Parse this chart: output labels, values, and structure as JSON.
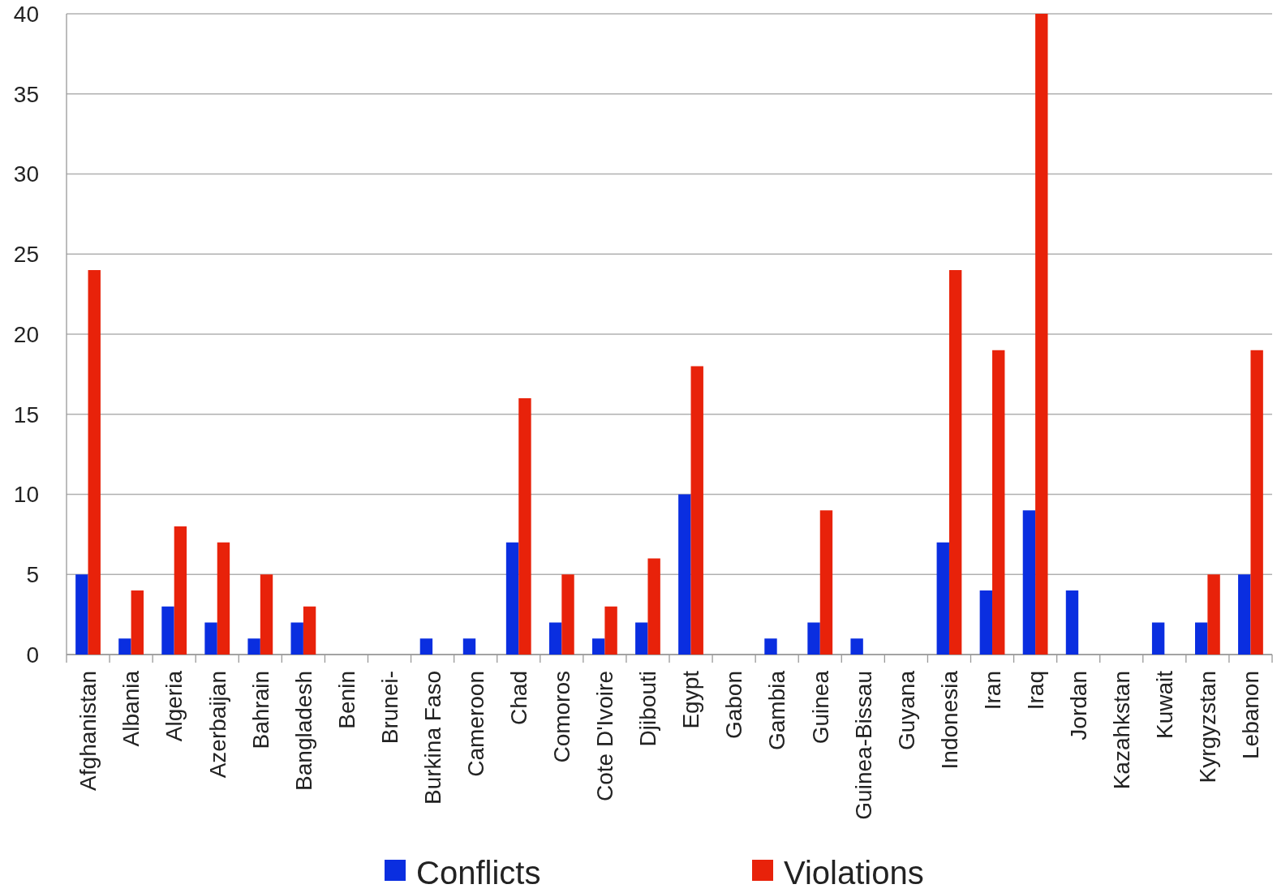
{
  "chart_data": {
    "type": "bar",
    "categories": [
      "Afghanistan",
      "Albania",
      "Algeria",
      "Azerbaijan",
      "Bahrain",
      "Bangladesh",
      "Benin",
      "Brunei-",
      "Burkina Faso",
      "Cameroon",
      "Chad",
      "Comoros",
      "Cote D'Ivoire",
      "Djibouti",
      "Egypt",
      "Gabon",
      "Gambia",
      "Guinea",
      "Guinea-Bissau",
      "Guyana",
      "Indonesia",
      "Iran",
      "Iraq",
      "Jordan",
      "Kazahkstan",
      "Kuwait",
      "Kyrgyzstan",
      "Lebanon"
    ],
    "series": [
      {
        "name": "Conflicts",
        "color": "#0a2ee0",
        "values": [
          5,
          1,
          3,
          2,
          1,
          2,
          0,
          0,
          1,
          1,
          7,
          2,
          1,
          2,
          10,
          0,
          1,
          2,
          1,
          0,
          7,
          4,
          9,
          4,
          0,
          2,
          2,
          5
        ]
      },
      {
        "name": "Violations",
        "color": "#e8220a",
        "values": [
          24,
          4,
          8,
          7,
          5,
          3,
          0,
          0,
          0,
          0,
          16,
          5,
          3,
          6,
          18,
          0,
          0,
          9,
          0,
          0,
          24,
          19,
          40,
          0,
          0,
          0,
          5,
          19
        ]
      }
    ],
    "ylim": [
      0,
      40
    ],
    "yticks": [
      0,
      5,
      10,
      15,
      20,
      25,
      30,
      35,
      40
    ],
    "grid": "y",
    "legend": "bottom"
  }
}
